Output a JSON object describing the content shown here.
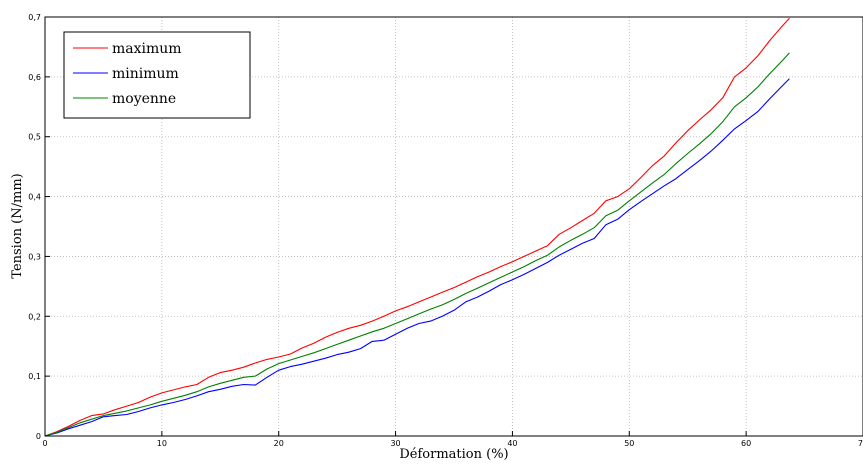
{
  "chart_data": {
    "type": "line",
    "xlabel": "Déformation (%)",
    "ylabel": "Tension (N/mm)",
    "xlim": [
      0,
      70
    ],
    "ylim": [
      0,
      0.7
    ],
    "xticks": [
      0,
      10,
      20,
      30,
      40,
      50,
      60,
      70
    ],
    "yticks": [
      0,
      0.1,
      0.2,
      0.3,
      0.4,
      0.5,
      0.6,
      0.7
    ],
    "xtick_labels": [
      "0",
      "10",
      "20",
      "30",
      "40",
      "50",
      "60",
      "70"
    ],
    "ytick_labels": [
      "0",
      "0,1",
      "0,2",
      "0,3",
      "0,4",
      "0,5",
      "0,6",
      "0,7"
    ],
    "grid": true,
    "legend_position": "top-left",
    "series": [
      {
        "name": "maximum",
        "color": "#ff0000",
        "x": [
          0,
          1,
          2,
          3,
          4,
          5,
          6,
          7,
          8,
          9,
          10,
          11,
          12,
          13,
          14,
          15,
          16,
          17,
          18,
          19,
          20,
          21,
          22,
          23,
          24,
          25,
          26,
          27,
          28,
          29,
          30,
          31,
          32,
          33,
          34,
          35,
          36,
          37,
          38,
          39,
          40,
          41,
          42,
          43,
          44,
          45,
          46,
          47,
          48,
          49,
          50,
          51,
          52,
          53,
          54,
          55,
          56,
          57,
          58,
          59,
          60,
          61,
          62,
          63,
          63.7
        ],
        "y": [
          0,
          0.007,
          0.016,
          0.026,
          0.034,
          0.037,
          0.044,
          0.05,
          0.056,
          0.065,
          0.072,
          0.077,
          0.082,
          0.086,
          0.098,
          0.106,
          0.11,
          0.115,
          0.122,
          0.128,
          0.132,
          0.137,
          0.147,
          0.155,
          0.165,
          0.173,
          0.18,
          0.185,
          0.192,
          0.2,
          0.209,
          0.216,
          0.224,
          0.232,
          0.24,
          0.248,
          0.257,
          0.266,
          0.274,
          0.283,
          0.291,
          0.3,
          0.309,
          0.318,
          0.337,
          0.348,
          0.36,
          0.372,
          0.393,
          0.4,
          0.413,
          0.432,
          0.452,
          0.468,
          0.49,
          0.51,
          0.528,
          0.545,
          0.565,
          0.6,
          0.615,
          0.635,
          0.66,
          0.683,
          0.698
        ]
      },
      {
        "name": "minimum",
        "color": "#0000ff",
        "x": [
          0,
          1,
          2,
          3,
          4,
          5,
          6,
          7,
          8,
          9,
          10,
          11,
          12,
          13,
          14,
          15,
          16,
          17,
          18,
          19,
          20,
          21,
          22,
          23,
          24,
          25,
          26,
          27,
          28,
          29,
          30,
          31,
          32,
          33,
          34,
          35,
          36,
          37,
          38,
          39,
          40,
          41,
          42,
          43,
          44,
          45,
          46,
          47,
          48,
          49,
          50,
          51,
          52,
          53,
          54,
          55,
          56,
          57,
          58,
          59,
          60,
          61,
          62,
          63,
          63.7
        ],
        "y": [
          0,
          0.005,
          0.012,
          0.018,
          0.024,
          0.032,
          0.034,
          0.036,
          0.041,
          0.047,
          0.052,
          0.056,
          0.061,
          0.067,
          0.074,
          0.078,
          0.083,
          0.086,
          0.085,
          0.098,
          0.11,
          0.116,
          0.12,
          0.125,
          0.13,
          0.136,
          0.14,
          0.146,
          0.158,
          0.16,
          0.17,
          0.18,
          0.188,
          0.192,
          0.2,
          0.21,
          0.224,
          0.232,
          0.242,
          0.253,
          0.261,
          0.27,
          0.28,
          0.29,
          0.302,
          0.312,
          0.322,
          0.33,
          0.353,
          0.362,
          0.378,
          0.392,
          0.405,
          0.418,
          0.43,
          0.445,
          0.46,
          0.476,
          0.494,
          0.513,
          0.527,
          0.542,
          0.563,
          0.583,
          0.597
        ]
      },
      {
        "name": "moyenne",
        "color": "#008000",
        "x": [
          0,
          1,
          2,
          3,
          4,
          5,
          6,
          7,
          8,
          9,
          10,
          11,
          12,
          13,
          14,
          15,
          16,
          17,
          18,
          19,
          20,
          21,
          22,
          23,
          24,
          25,
          26,
          27,
          28,
          29,
          30,
          31,
          32,
          33,
          34,
          35,
          36,
          37,
          38,
          39,
          40,
          41,
          42,
          43,
          44,
          45,
          46,
          47,
          48,
          49,
          50,
          51,
          52,
          53,
          54,
          55,
          56,
          57,
          58,
          59,
          60,
          61,
          62,
          63,
          63.7
        ],
        "y": [
          0,
          0.006,
          0.014,
          0.022,
          0.028,
          0.034,
          0.038,
          0.042,
          0.047,
          0.052,
          0.058,
          0.063,
          0.068,
          0.074,
          0.082,
          0.088,
          0.093,
          0.098,
          0.1,
          0.112,
          0.121,
          0.127,
          0.133,
          0.139,
          0.146,
          0.153,
          0.16,
          0.167,
          0.174,
          0.18,
          0.188,
          0.196,
          0.204,
          0.212,
          0.219,
          0.228,
          0.238,
          0.247,
          0.256,
          0.265,
          0.274,
          0.283,
          0.293,
          0.302,
          0.316,
          0.327,
          0.337,
          0.348,
          0.368,
          0.377,
          0.393,
          0.408,
          0.423,
          0.437,
          0.455,
          0.472,
          0.488,
          0.505,
          0.525,
          0.55,
          0.565,
          0.583,
          0.605,
          0.625,
          0.64
        ]
      }
    ]
  }
}
